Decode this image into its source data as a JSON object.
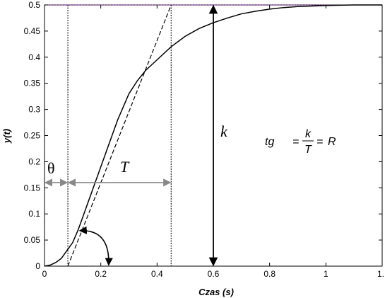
{
  "chart_data": {
    "type": "line",
    "title": "",
    "xlabel": "Czas (s)",
    "ylabel": "y(t)",
    "xlim": [
      0,
      1.2
    ],
    "ylim": [
      0,
      0.5
    ],
    "x_ticks": [
      "0",
      "0.2",
      "0.4",
      "0.6",
      "0.8",
      "1",
      "1."
    ],
    "y_ticks": [
      "0",
      "0.05",
      "0.1",
      "0.15",
      "0.2",
      "0.25",
      "0.3",
      "0.35",
      "0.4",
      "0.45",
      "0.5"
    ],
    "grid": false,
    "series": [
      {
        "x": [
          0,
          0.02,
          0.04,
          0.06,
          0.08,
          0.1,
          0.12,
          0.14,
          0.16,
          0.18,
          0.2,
          0.22,
          0.24,
          0.26,
          0.28,
          0.3,
          0.33,
          0.36,
          0.4,
          0.45,
          0.5,
          0.55,
          0.6,
          0.65,
          0.7,
          0.75,
          0.8,
          0.85,
          0.9,
          0.95,
          1.0,
          1.05,
          1.1,
          1.15,
          1.2
        ],
        "y": [
          0,
          0.002,
          0.007,
          0.015,
          0.03,
          0.045,
          0.07,
          0.1,
          0.13,
          0.16,
          0.19,
          0.22,
          0.25,
          0.28,
          0.305,
          0.33,
          0.355,
          0.375,
          0.395,
          0.42,
          0.44,
          0.455,
          0.466,
          0.475,
          0.483,
          0.488,
          0.492,
          0.495,
          0.497,
          0.498,
          0.499,
          0.4995,
          0.5,
          0.5,
          0.5
        ]
      }
    ],
    "tangent": {
      "x": [
        0.083,
        0.45
      ],
      "y": [
        0,
        0.5
      ]
    },
    "delay_line_x": 0.083,
    "time_constant_line_x": 0.45,
    "gain_line_x": 0.6,
    "theta_arrow_y": 0.16,
    "annotations": {
      "theta": "θ",
      "T": "T",
      "k": "k",
      "formula_left": "tg",
      "formula_equals1": "=",
      "formula_num": "k",
      "formula_den": "T",
      "formula_equals2": "=",
      "formula_right": "R"
    }
  }
}
